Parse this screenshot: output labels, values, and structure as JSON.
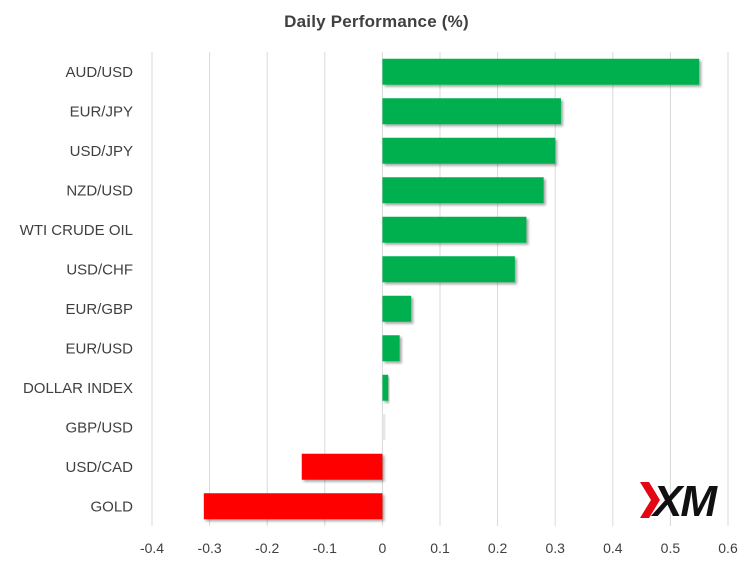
{
  "chart_data": {
    "type": "bar",
    "orientation": "horizontal",
    "title": "Daily Performance (%)",
    "categories": [
      "AUD/USD",
      "EUR/JPY",
      "USD/JPY",
      "NZD/USD",
      "WTI CRUDE OIL",
      "USD/CHF",
      "EUR/GBP",
      "EUR/USD",
      "DOLLAR INDEX",
      "GBP/USD",
      "USD/CAD",
      "GOLD"
    ],
    "values": [
      0.55,
      0.31,
      0.3,
      0.28,
      0.25,
      0.23,
      0.05,
      0.03,
      0.01,
      0.0,
      -0.14,
      -0.31
    ],
    "xlim": [
      -0.4,
      0.6
    ],
    "xticks": [
      "-0.4",
      "-0.3",
      "-0.2",
      "-0.1",
      "0",
      "0.1",
      "0.2",
      "0.3",
      "0.4",
      "0.5",
      "0.6"
    ],
    "grid": "vertical",
    "legend": "none",
    "colors": {
      "positive": "#00B050",
      "negative": "#FF0000",
      "zero": "#E6E6E6",
      "grid": "#D9D9D9"
    }
  },
  "logo": {
    "text": "XM",
    "accent": "#E30613"
  }
}
